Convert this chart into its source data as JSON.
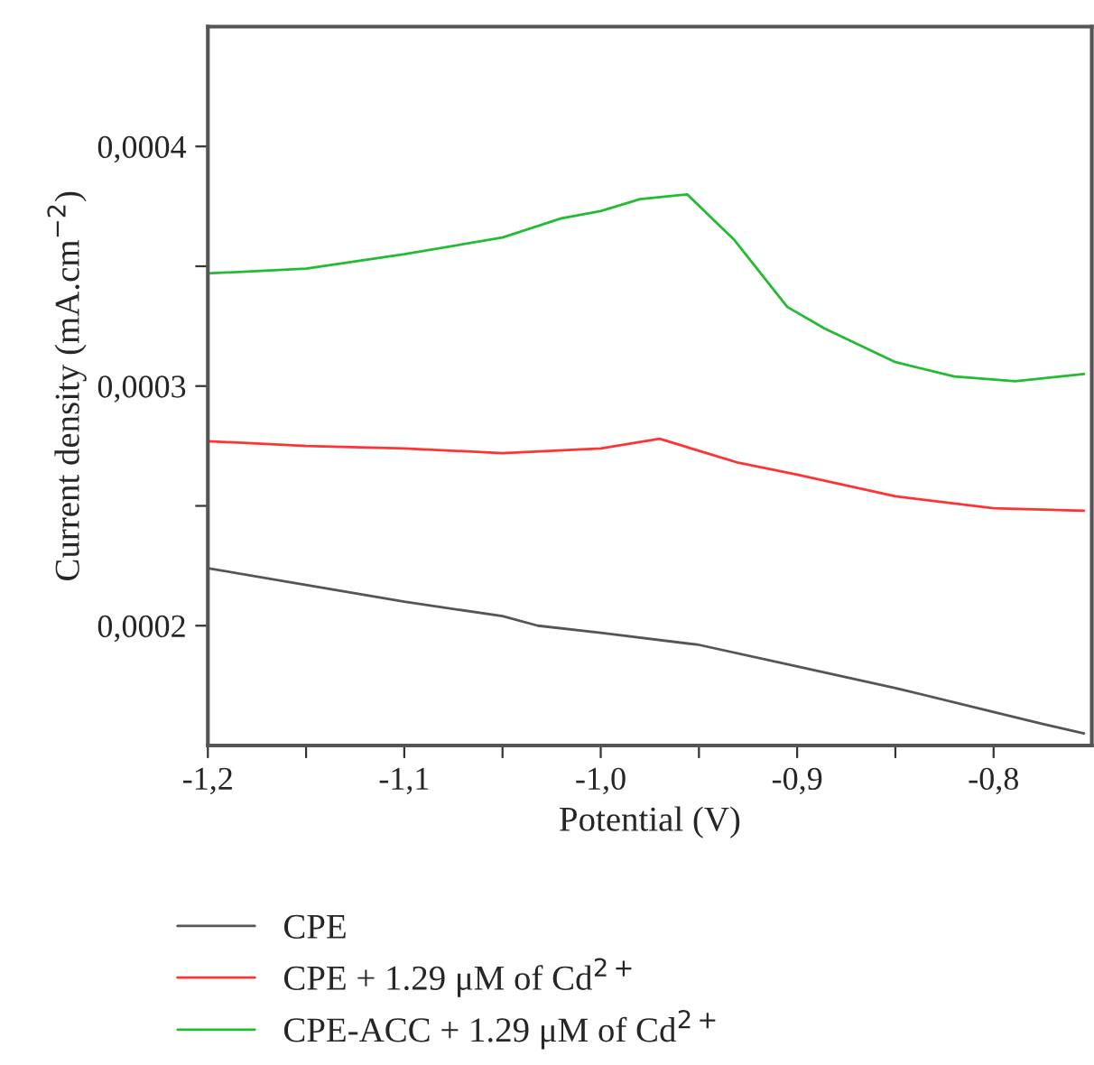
{
  "chart_data": {
    "type": "line",
    "xlabel": "Potential (V)",
    "ylabel": "Current density (mA.cm$^{−2}$)",
    "xlim": [
      -1.2,
      -0.75
    ],
    "ylim": [
      0.00015,
      0.00045
    ],
    "xticks": [
      {
        "value": -1.2,
        "label": "-1,2"
      },
      {
        "value": -1.15,
        "label": null
      },
      {
        "value": -1.1,
        "label": "-1,1"
      },
      {
        "value": -1.05,
        "label": null
      },
      {
        "value": -1.0,
        "label": "-1,0"
      },
      {
        "value": -0.95,
        "label": null
      },
      {
        "value": -0.9,
        "label": "-0,9"
      },
      {
        "value": -0.85,
        "label": null
      },
      {
        "value": -0.8,
        "label": "-0,8"
      }
    ],
    "yticks": [
      {
        "value": 0.0002,
        "label": "0,0002"
      },
      {
        "value": 0.00025,
        "label": null
      },
      {
        "value": 0.0003,
        "label": "0,0003"
      },
      {
        "value": 0.00035,
        "label": null
      },
      {
        "value": 0.0004,
        "label": "0,0004"
      }
    ],
    "grid": false,
    "legend": "bottom",
    "marker": "none",
    "line_style": "solid",
    "series": [
      {
        "name": "CPE",
        "color": "#555555",
        "x": [
          -1.2,
          -1.15,
          -1.1,
          -1.05,
          -1.032,
          -1.0,
          -0.95,
          -0.9,
          -0.85,
          -0.8,
          -0.775,
          -0.754
        ],
        "values": [
          0.000224,
          0.000217,
          0.00021,
          0.000204,
          0.0002,
          0.000197,
          0.000192,
          0.000183,
          0.000174,
          0.000164,
          0.000159,
          0.000155
        ]
      },
      {
        "name": "CPE + 1.29 μM of Cd$^{2+}$",
        "color": "#ff3333",
        "x": [
          -1.2,
          -1.15,
          -1.1,
          -1.05,
          -1.0,
          -0.97,
          -0.93,
          -0.9,
          -0.85,
          -0.8,
          -0.754
        ],
        "values": [
          0.000277,
          0.000275,
          0.000274,
          0.000272,
          0.000274,
          0.000278,
          0.000268,
          0.000263,
          0.000254,
          0.000249,
          0.000248
        ]
      },
      {
        "name": "CPE-ACC + 1.29 μM of Cd$^{2+}$",
        "color": "#22bb33",
        "x": [
          -1.2,
          -1.15,
          -1.1,
          -1.05,
          -1.02,
          -1.0,
          -0.98,
          -0.956,
          -0.932,
          -0.905,
          -0.886,
          -0.85,
          -0.82,
          -0.789,
          -0.754
        ],
        "values": [
          0.000347,
          0.000349,
          0.000355,
          0.000362,
          0.00037,
          0.000373,
          0.000378,
          0.00038,
          0.000361,
          0.000333,
          0.000324,
          0.00031,
          0.000304,
          0.000302,
          0.000305
        ]
      }
    ]
  }
}
